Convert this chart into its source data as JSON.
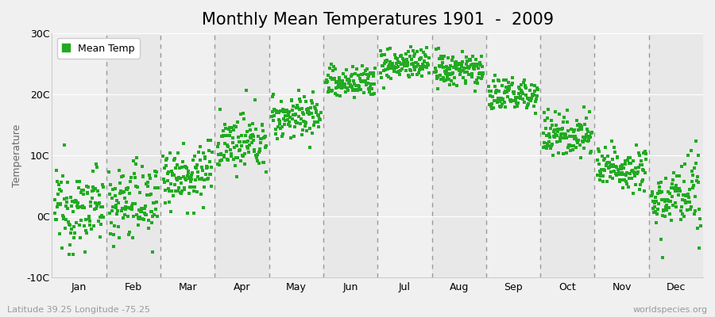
{
  "title": "Monthly Mean Temperatures 1901  -  2009",
  "ylabel": "Temperature",
  "subtitle": "Latitude 39.25 Longitude -75.25",
  "watermark": "worldspecies.org",
  "ylim": [
    -10,
    30
  ],
  "yticks": [
    -10,
    0,
    10,
    20,
    30
  ],
  "ytick_labels": [
    "-10C",
    "0C",
    "10C",
    "20C",
    "30C"
  ],
  "months": [
    "Jan",
    "Feb",
    "Mar",
    "Apr",
    "May",
    "Jun",
    "Jul",
    "Aug",
    "Sep",
    "Oct",
    "Nov",
    "Dec"
  ],
  "month_means": [
    1.5,
    2.5,
    7.0,
    12.0,
    16.5,
    22.0,
    25.0,
    24.0,
    20.0,
    13.5,
    8.0,
    3.0
  ],
  "month_stds": [
    3.2,
    3.2,
    2.5,
    2.2,
    1.8,
    1.4,
    1.3,
    1.4,
    1.5,
    1.8,
    1.8,
    2.8
  ],
  "month_trends": [
    0.005,
    0.005,
    0.005,
    0.005,
    0.005,
    0.005,
    0.005,
    0.005,
    0.005,
    0.005,
    0.005,
    0.005
  ],
  "n_years": 109,
  "dot_color": "#22aa22",
  "dot_size": 5,
  "bg_color": "#f0f0f0",
  "plot_bg_color": "#f5f5f5",
  "band_colors": [
    "#f0f0f0",
    "#e8e8e8"
  ],
  "legend_label": "Mean Temp",
  "title_fontsize": 15,
  "axis_label_fontsize": 9,
  "tick_label_fontsize": 9,
  "subtitle_fontsize": 8,
  "watermark_fontsize": 8,
  "dashed_color": "#999999",
  "dashed_linewidth": 1.0
}
